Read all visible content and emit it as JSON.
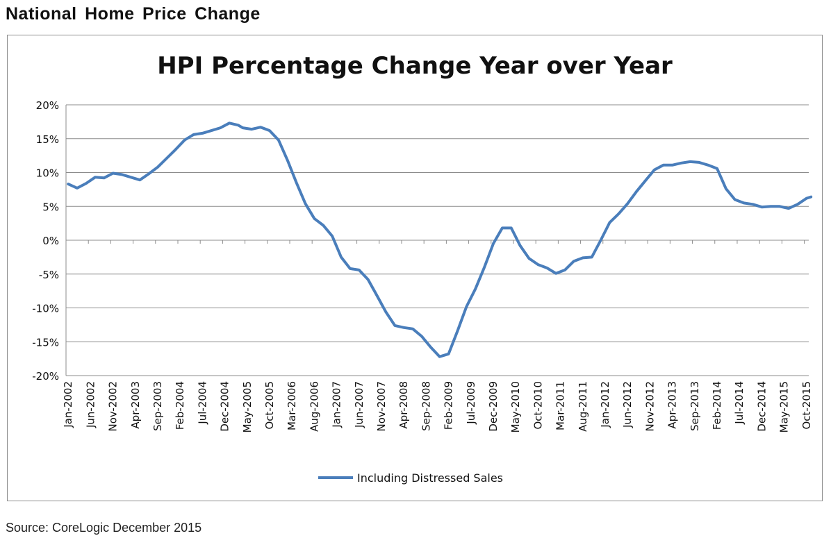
{
  "header": {
    "title": "National Home Price Change"
  },
  "footer": {
    "source": "Source: CoreLogic December 2015"
  },
  "chart_data": {
    "type": "line",
    "title": "HPI Percentage Change Year over Year",
    "xlabel": "",
    "ylabel": "",
    "ylim": [
      -20,
      20
    ],
    "y_ticks": [
      "20%",
      "15%",
      "10%",
      "5%",
      "0%",
      "-5%",
      "-10%",
      "-15%",
      "-20%"
    ],
    "y_tick_values": [
      20,
      15,
      10,
      5,
      0,
      -5,
      -10,
      -15,
      -20
    ],
    "x_tick_labels": [
      "Jan-2002",
      "Jun-2002",
      "Nov-2002",
      "Apr-2003",
      "Sep-2003",
      "Feb-2004",
      "Jul-2004",
      "Dec-2004",
      "May-2005",
      "Oct-2005",
      "Mar-2006",
      "Aug-2006",
      "Jan-2007",
      "Jun-2007",
      "Nov-2007",
      "Apr-2008",
      "Sep-2008",
      "Feb-2009",
      "Jul-2009",
      "Dec-2009",
      "May-2010",
      "Oct-2010",
      "Mar-2011",
      "Aug-2011",
      "Jan-2012",
      "Jun-2012",
      "Nov-2012",
      "Apr-2013",
      "Sep-2013",
      "Feb-2014",
      "Jul-2014",
      "Dec-2014",
      "May-2015",
      "Oct-2015"
    ],
    "grid": true,
    "legend_position": "bottom",
    "line_color": "#4a7ebb",
    "series": [
      {
        "name": "Including Distressed Sales",
        "x": [
          "Jan-2002",
          "Mar-2002",
          "May-2002",
          "Jul-2002",
          "Sep-2002",
          "Nov-2002",
          "Jan-2003",
          "Mar-2003",
          "May-2003",
          "Jul-2003",
          "Sep-2003",
          "Nov-2003",
          "Jan-2004",
          "Mar-2004",
          "May-2004",
          "Jul-2004",
          "Sep-2004",
          "Nov-2004",
          "Jan-2005",
          "Mar-2005",
          "Apr-2005",
          "Jun-2005",
          "Aug-2005",
          "Oct-2005",
          "Dec-2005",
          "Feb-2006",
          "Apr-2006",
          "Jun-2006",
          "Aug-2006",
          "Oct-2006",
          "Dec-2006",
          "Feb-2007",
          "Apr-2007",
          "Jun-2007",
          "Aug-2007",
          "Oct-2007",
          "Dec-2007",
          "Feb-2008",
          "Apr-2008",
          "Jun-2008",
          "Aug-2008",
          "Oct-2008",
          "Dec-2008",
          "Feb-2009",
          "Apr-2009",
          "Jun-2009",
          "Aug-2009",
          "Oct-2009",
          "Dec-2009",
          "Feb-2010",
          "Apr-2010",
          "Jun-2010",
          "Aug-2010",
          "Oct-2010",
          "Dec-2010",
          "Feb-2011",
          "Apr-2011",
          "Jun-2011",
          "Aug-2011",
          "Oct-2011",
          "Dec-2011",
          "Feb-2012",
          "Apr-2012",
          "Jun-2012",
          "Aug-2012",
          "Oct-2012",
          "Dec-2012",
          "Feb-2013",
          "Apr-2013",
          "Jun-2013",
          "Aug-2013",
          "Oct-2013",
          "Dec-2013",
          "Feb-2014",
          "Apr-2014",
          "Jun-2014",
          "Aug-2014",
          "Oct-2014",
          "Dec-2014",
          "Feb-2015",
          "Apr-2015",
          "Jun-2015",
          "Aug-2015",
          "Oct-2015",
          "Nov-2015"
        ],
        "values": [
          8.3,
          7.7,
          8.4,
          9.3,
          9.2,
          9.9,
          9.7,
          9.3,
          8.9,
          9.8,
          10.8,
          12.1,
          13.4,
          14.8,
          15.6,
          15.8,
          16.2,
          16.6,
          17.3,
          17.0,
          16.6,
          16.4,
          16.7,
          16.2,
          14.8,
          11.8,
          8.5,
          5.4,
          3.2,
          2.2,
          0.6,
          -2.5,
          -4.2,
          -4.4,
          -5.8,
          -8.2,
          -10.6,
          -12.6,
          -12.9,
          -13.1,
          -14.2,
          -15.8,
          -17.2,
          -16.8,
          -13.4,
          -9.8,
          -7.2,
          -4.0,
          -0.5,
          1.8,
          1.8,
          -0.8,
          -2.7,
          -3.6,
          -4.1,
          -4.9,
          -4.4,
          -3.1,
          -2.6,
          -2.5,
          0.0,
          2.6,
          3.9,
          5.4,
          7.2,
          8.8,
          10.4,
          11.1,
          11.1,
          11.4,
          11.6,
          11.5,
          11.1,
          10.6,
          7.6,
          6.0,
          5.5,
          5.3,
          4.9,
          5.0,
          5.0,
          4.7,
          5.3,
          6.2,
          6.4
        ]
      }
    ]
  }
}
